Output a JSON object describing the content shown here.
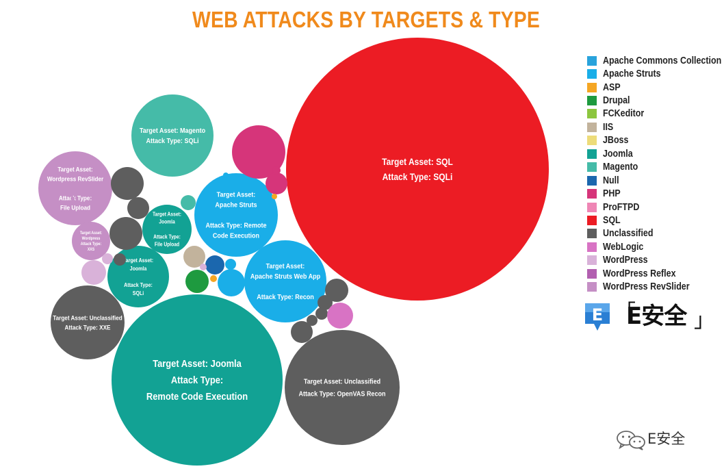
{
  "chart_data": {
    "type": "bubble",
    "title": "WEB ATTACKS BY TARGETS & TYPE",
    "legend_placement": "right",
    "legend": [
      {
        "name": "Apache Commons Collection",
        "color": "#29a3dc"
      },
      {
        "name": "Apache Struts",
        "color": "#1aaee8"
      },
      {
        "name": "ASP",
        "color": "#f5a623"
      },
      {
        "name": "Drupal",
        "color": "#1e9a3f"
      },
      {
        "name": "FCKeditor",
        "color": "#8cc63f"
      },
      {
        "name": "IIS",
        "color": "#c2b39c"
      },
      {
        "name": "JBoss",
        "color": "#eddc7a"
      },
      {
        "name": "Joomla",
        "color": "#12a294"
      },
      {
        "name": "Magento",
        "color": "#45bba8"
      },
      {
        "name": "Null",
        "color": "#1b67ae"
      },
      {
        "name": "PHP",
        "color": "#d6357a"
      },
      {
        "name": "ProFTPD",
        "color": "#ef86b5"
      },
      {
        "name": "SQL",
        "color": "#ec1c24"
      },
      {
        "name": "Unclassified",
        "color": "#5e5e5e"
      },
      {
        "name": "WebLogic",
        "color": "#d873c4"
      },
      {
        "name": "WordPress",
        "color": "#d9b2d9"
      },
      {
        "name": "WordPress Reflex",
        "color": "#b25fb0"
      },
      {
        "name": "WordPress RevSlider",
        "color": "#c58fc5"
      }
    ],
    "bubbles": [
      {
        "asset": "SQL",
        "lines": [
          "Target Asset: SQL",
          "Attack Type:  SQLi"
        ]
      },
      {
        "asset": "Joomla",
        "lines": [
          "Target Asset: Joomla",
          "Attack Type:",
          "Remote Code Execution"
        ]
      },
      {
        "asset": "Unclassified",
        "lines": [
          "Target Asset: Unclassified",
          "Attack Type: OpenVAS Recon"
        ]
      },
      {
        "asset": "Magento",
        "lines": [
          "Target Asset: Magento",
          "Attack Type:  SQLi"
        ]
      },
      {
        "asset": "Apache Struts",
        "lines": [
          "Target Asset:",
          "Apache Struts",
          "",
          "Attack Type: Remote",
          "Code Execution"
        ]
      },
      {
        "asset": "Apache Struts",
        "lines": [
          "Target Asset:",
          "Apache Struts Web App",
          "",
          "Attack Type: Recon"
        ]
      },
      {
        "asset": "Unclassified",
        "lines": [
          "Target Asset: Unclassified",
          "Attack Type: XXE"
        ]
      },
      {
        "asset": "WordPress RevSlider",
        "lines": [
          "Target Asset:",
          "Wordpress RevSlider",
          "",
          "Attack Type:",
          "File Upload"
        ]
      },
      {
        "asset": "Joomla",
        "lines": [
          "Target Asset:",
          "Joomla",
          "",
          "Attack Type:",
          "File Upload"
        ]
      },
      {
        "asset": "Joomla",
        "lines": [
          "Target Asset:",
          "Joomla",
          "",
          "Attack Type:",
          "SQLi"
        ]
      },
      {
        "asset": "WordPress RevSlider",
        "lines": [
          "Target Asset:",
          "Wordpress",
          "Attack Type:",
          "XXS"
        ]
      },
      {
        "asset": "PHP",
        "lines": []
      },
      {
        "asset": "PHP",
        "lines": []
      },
      {
        "asset": "PHP",
        "lines": []
      },
      {
        "asset": "Unclassified",
        "lines": []
      },
      {
        "asset": "Unclassified",
        "lines": []
      },
      {
        "asset": "Unclassified",
        "lines": []
      },
      {
        "asset": "Unclassified",
        "lines": []
      },
      {
        "asset": "Unclassified",
        "lines": []
      },
      {
        "asset": "Unclassified",
        "lines": []
      },
      {
        "asset": "Unclassified",
        "lines": []
      },
      {
        "asset": "Unclassified",
        "lines": []
      },
      {
        "asset": "Unclassified",
        "lines": []
      },
      {
        "asset": "Magento",
        "lines": []
      },
      {
        "asset": "IIS",
        "lines": []
      },
      {
        "asset": "Null",
        "lines": []
      },
      {
        "asset": "Drupal",
        "lines": []
      },
      {
        "asset": "Apache Struts",
        "lines": []
      },
      {
        "asset": "Apache Struts",
        "lines": []
      },
      {
        "asset": "Apache Struts",
        "lines": []
      },
      {
        "asset": "WordPress",
        "lines": []
      },
      {
        "asset": "WordPress",
        "lines": []
      },
      {
        "asset": "WordPress",
        "lines": []
      },
      {
        "asset": "WebLogic",
        "lines": []
      },
      {
        "asset": "ASP",
        "lines": []
      },
      {
        "asset": "ASP",
        "lines": []
      },
      {
        "asset": "WordPress RevSlider",
        "lines": []
      }
    ]
  },
  "logo": {
    "icon_letter": "E",
    "text": "E安全",
    "bracket_left": "「",
    "bracket_right": "」"
  },
  "watermark": {
    "text": "E安全"
  }
}
